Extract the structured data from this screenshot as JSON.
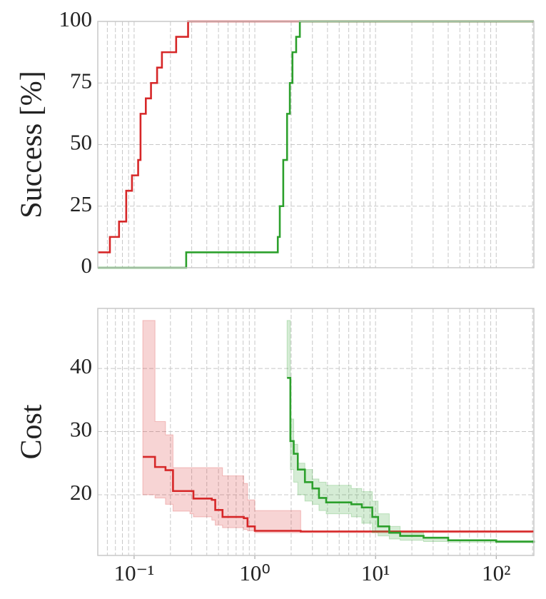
{
  "chart_data": [
    {
      "type": "line",
      "step": "post",
      "xscale": "log",
      "grid": true,
      "ylabel": "Success [%]",
      "xlim": [
        0.05,
        205
      ],
      "ylim": [
        0,
        100
      ],
      "yticks": [
        0,
        25,
        50,
        75,
        100
      ],
      "series": [
        {
          "color": "#d62728",
          "x": [
            0.05,
            0.063,
            0.075,
            0.086,
            0.096,
            0.108,
            0.113,
            0.125,
            0.138,
            0.155,
            0.17,
            0.223,
            0.262,
            0.28,
            205
          ],
          "values": [
            6.25,
            12.5,
            18.75,
            31.25,
            37.5,
            43.75,
            62.5,
            68.75,
            75,
            81.25,
            87.5,
            93.75,
            93.75,
            100,
            100
          ]
        },
        {
          "color": "#2ca02c",
          "x": [
            0.05,
            0.27,
            1.5,
            1.55,
            1.61,
            1.72,
            1.85,
            1.95,
            2.05,
            2.2,
            2.36,
            205
          ],
          "values": [
            0,
            6.25,
            6.25,
            12.5,
            25,
            43.75,
            62.5,
            75,
            87.5,
            93.75,
            100,
            100
          ]
        }
      ]
    },
    {
      "type": "band",
      "step": "post",
      "xscale": "log",
      "grid": true,
      "ylabel": "Cost",
      "xlim": [
        0.05,
        205
      ],
      "ylim": [
        10.4,
        49.5
      ],
      "yticks": [
        20,
        30,
        40
      ],
      "xticks": [
        {
          "value": 0.1,
          "label": "10⁻¹"
        },
        {
          "value": 1,
          "label": "10⁰"
        },
        {
          "value": 10,
          "label": "10¹"
        },
        {
          "value": 100,
          "label": "10²"
        }
      ],
      "series": [
        {
          "color": "#d62728",
          "x": [
            0.118,
            0.149,
            0.182,
            0.21,
            0.29,
            0.31,
            0.44,
            0.47,
            0.54,
            0.81,
            0.87,
            1.0,
            2.4,
            205
          ],
          "values": [
            26,
            24.4,
            23.9,
            20.6,
            20.6,
            19.4,
            19.2,
            17.6,
            16.5,
            16.3,
            15.0,
            14.3,
            14.2,
            14.2
          ],
          "lower": [
            20,
            19.5,
            18.5,
            17.4,
            17.0,
            16.5,
            16.0,
            15.2,
            14.8,
            14.5,
            14.3,
            14.0,
            14.0,
            14.2
          ],
          "upper": [
            47.6,
            31.6,
            29.5,
            24.3,
            24.3,
            24.3,
            24.3,
            24.3,
            23,
            21.8,
            19.2,
            17.5,
            14.2,
            14.2
          ]
        },
        {
          "color": "#2ca02c",
          "x": [
            1.85,
            1.97,
            2.1,
            2.27,
            2.6,
            3.0,
            3.4,
            3.9,
            6.3,
            7.7,
            9.4,
            10.5,
            13,
            16,
            25,
            40,
            100,
            205
          ],
          "values": [
            38.5,
            28.5,
            26.5,
            24,
            22,
            21,
            19.5,
            18.8,
            18.5,
            18,
            16.5,
            15,
            14,
            13.5,
            13.2,
            12.8,
            12.6,
            12.4
          ],
          "lower": [
            38.5,
            24,
            22,
            20,
            19,
            18.5,
            17.5,
            17,
            16.5,
            15.5,
            14,
            13.5,
            13,
            12.8,
            12.6,
            12.5,
            12.4,
            12.3
          ],
          "upper": [
            47.6,
            32,
            28,
            25,
            24,
            22.5,
            22,
            21.5,
            21,
            20.5,
            19,
            17,
            15,
            14,
            13.3,
            12.9,
            12.7,
            12.5
          ]
        }
      ]
    }
  ]
}
